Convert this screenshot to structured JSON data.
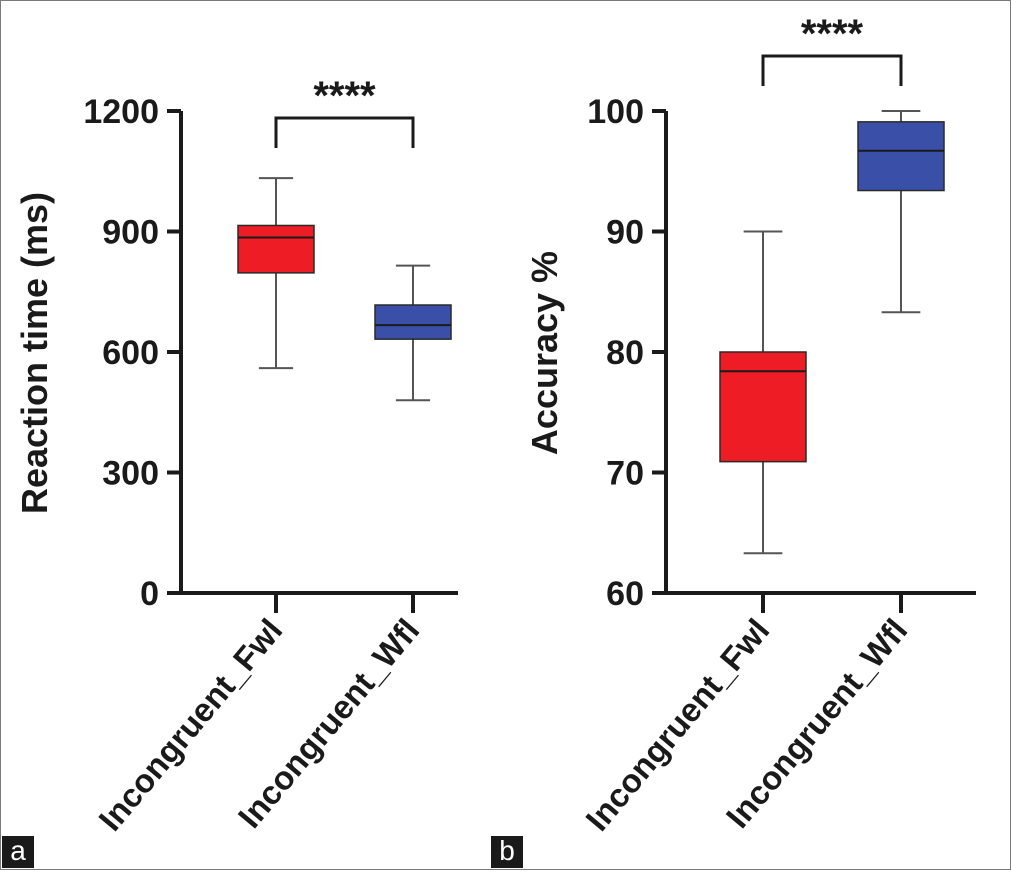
{
  "chart_data": [
    {
      "type": "boxplot",
      "panel": "a",
      "ylabel": "Reaction time (ms)",
      "ylim": [
        0,
        1200
      ],
      "yticks": [
        0,
        300,
        600,
        900,
        1200
      ],
      "categories": [
        "Incongruent_Fwl",
        "Incongruent_Wfl"
      ],
      "series": [
        {
          "category": "Incongruent_Fwl",
          "color": "#ee1c24",
          "min": 560,
          "q1": 797,
          "median": 885,
          "q3": 915,
          "max": 1033
        },
        {
          "category": "Incongruent_Wfl",
          "color": "#3a50a8",
          "min": 480,
          "q1": 632,
          "median": 667,
          "q3": 717,
          "max": 815
        }
      ],
      "significance": {
        "label": "****",
        "between": [
          0,
          1
        ]
      }
    },
    {
      "type": "boxplot",
      "panel": "b",
      "ylabel": "Accuracy %",
      "ylim": [
        60,
        100
      ],
      "yticks": [
        60,
        70,
        80,
        90,
        100
      ],
      "categories": [
        "Incongruent_Fwl",
        "Incongruent_Wfl"
      ],
      "series": [
        {
          "category": "Incongruent_Fwl",
          "color": "#ee1c24",
          "min": 63.3,
          "q1": 70.9,
          "median": 78.4,
          "q3": 80.0,
          "max": 90.0
        },
        {
          "category": "Incongruent_Wfl",
          "color": "#3a50a8",
          "min": 83.3,
          "q1": 93.4,
          "median": 96.7,
          "q3": 99.1,
          "max": 100.0
        }
      ],
      "significance": {
        "label": "****",
        "between": [
          0,
          1
        ]
      }
    }
  ]
}
